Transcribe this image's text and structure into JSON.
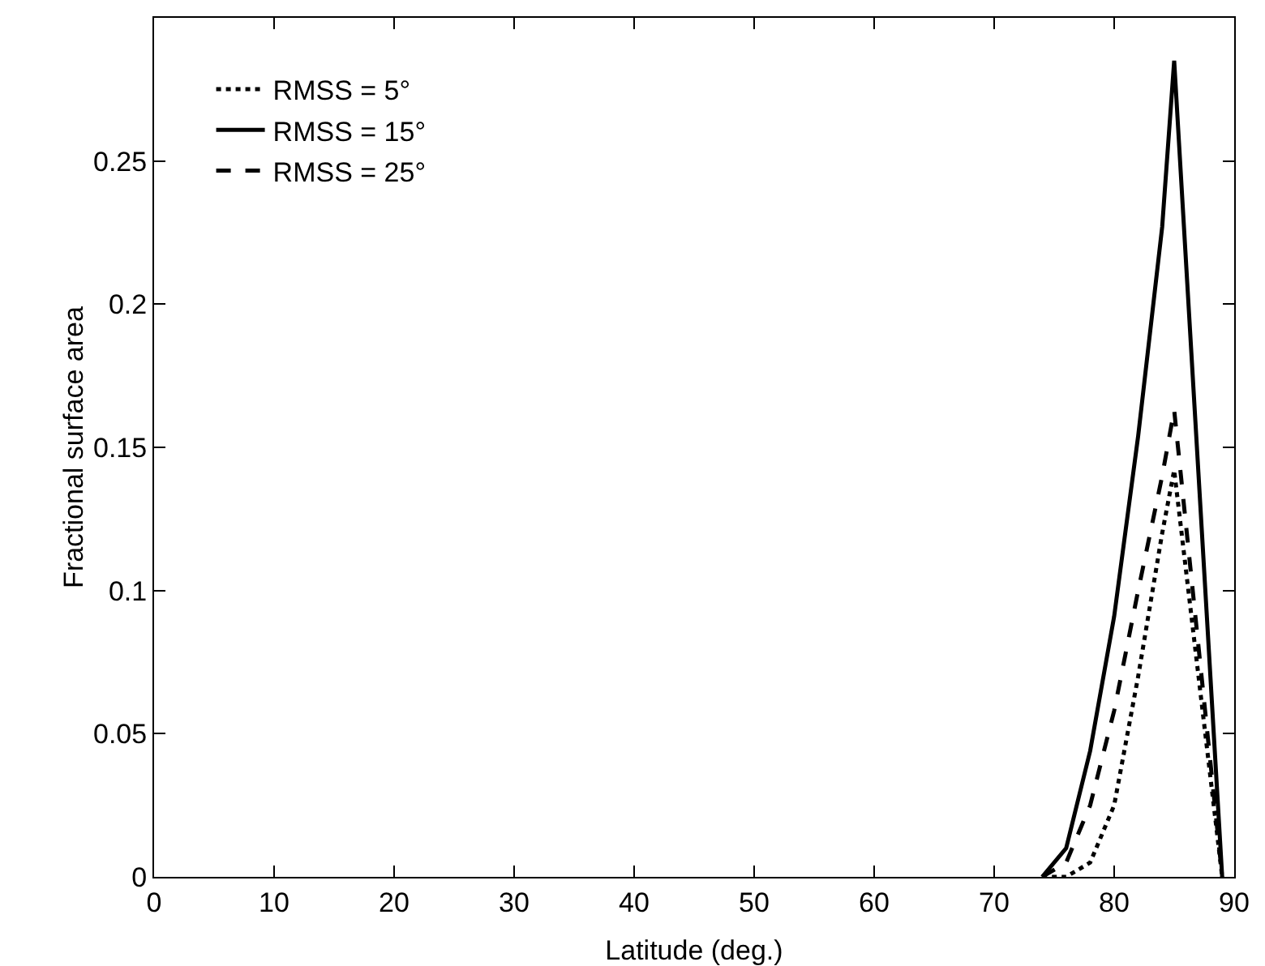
{
  "chart_data": {
    "type": "line",
    "xlabel": "Latitude (deg.)",
    "ylabel": "Fractional surface area",
    "x": [
      74,
      76,
      78,
      80,
      82,
      84,
      85,
      89
    ],
    "series": [
      {
        "name": "RMSS = 5°",
        "color": "#000000",
        "line_style": "dotted",
        "values": [
          0,
          0,
          0.005,
          0.025,
          0.07,
          0.12,
          0.142,
          0
        ]
      },
      {
        "name": "RMSS = 15°",
        "color": "#000000",
        "line_style": "solid",
        "values": [
          0,
          0.01,
          0.044,
          0.091,
          0.154,
          0.227,
          0.285,
          0
        ]
      },
      {
        "name": "RMSS = 25°",
        "color": "#000000",
        "line_style": "dashed",
        "values": [
          0,
          0.005,
          0.025,
          0.058,
          0.1,
          0.14,
          0.163,
          0
        ]
      }
    ],
    "xlim": [
      0,
      90
    ],
    "xticks": [
      0,
      10,
      20,
      30,
      40,
      50,
      60,
      70,
      80,
      90
    ],
    "ylim": [
      0,
      0.3
    ],
    "yticks": [
      0,
      0.05,
      0.1,
      0.15,
      0.2,
      0.25
    ],
    "grid": false,
    "legend": "top left",
    "marker": "none"
  }
}
